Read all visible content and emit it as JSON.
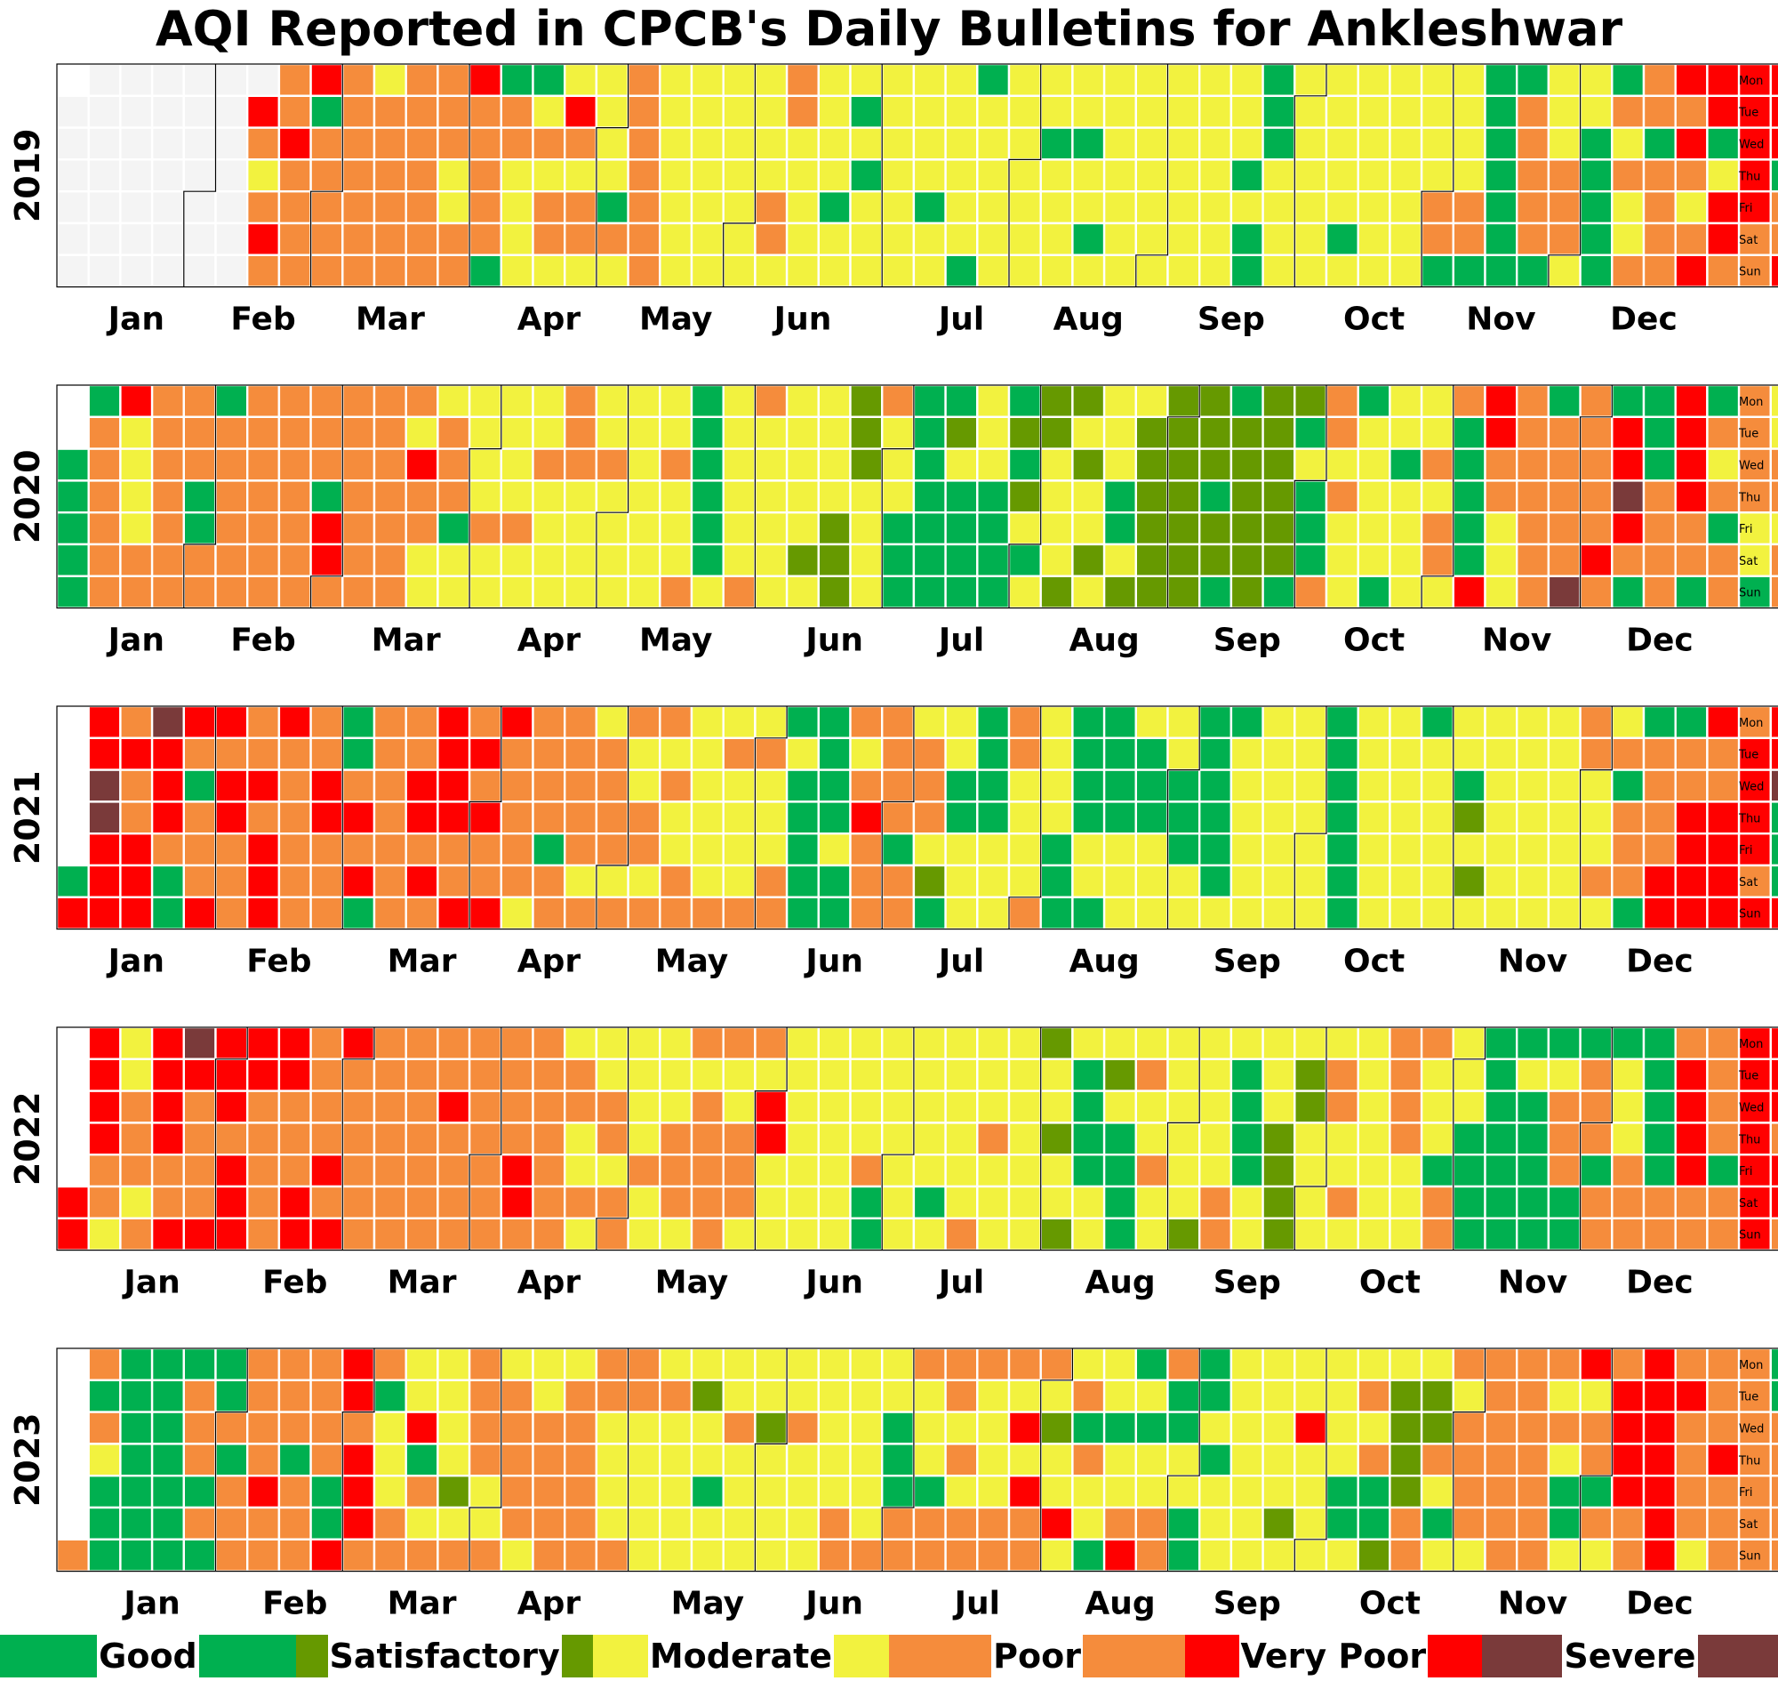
{
  "title": "AQI Reported in CPCB's Daily Bulletins for Ankleshwar",
  "colors": {
    "Good": "#00b050",
    "Satisfactory": "#669900",
    "Moderate": "#f2f23f",
    "Poor": "#f58c3c",
    "Very Poor": "#ff0000",
    "Severe": "#7a3a3a",
    "No data": "#f4f4f4"
  },
  "chart_data": {
    "type": "heatmap",
    "title": "AQI Reported in CPCB's Daily Bulletins for Ankleshwar",
    "legend_position": "bottom",
    "day_labels": [
      "Mon",
      "Tue",
      "Wed",
      "Thu",
      "Fri",
      "Sat",
      "Sun"
    ],
    "month_labels": [
      "Jan",
      "Feb",
      "Mar",
      "Apr",
      "May",
      "Jun",
      "Jul",
      "Aug",
      "Sep",
      "Oct",
      "Nov",
      "Dec"
    ],
    "categories": [
      "Good",
      "Satisfactory",
      "Moderate",
      "Poor",
      "Very Poor",
      "Severe"
    ],
    "code_legend": "Weekly columns from Monday to Sunday; one string per week, one character per day: G=Good, S=Satisfactory, M=Moderate, P=Poor, V=Very Poor, X=Severe, N=No data, space=not in year",
    "years": [
      {
        "year": "2019",
        "weeks": [
          " NNNNNN",
          "NNNNNNN",
          "NNNNNNN",
          "NNNNNNN",
          "NNNNNNN",
          "NNNNNNN",
          "NVPMPVP",
          "PPVPPPP",
          "VGPPPPP",
          "PPPPPPP",
          "MPPPPPP",
          "PPPPPPP",
          "PPPMMPP",
          "VPPPPPG",
          "GPPMMMM",
          "GMPMPPM",
          "MVPMPPM",
          "MMMMGPM",
          "PPPPPPP",
          "MMMMMMM",
          "MMMMMMM",
          "MMMMMMM",
          "MMMMPPM",
          "PPMMMMM",
          "MMMMGMM",
          "MGMGMMM",
          "MMMMMMM",
          "MMMMGMM",
          "MMMMMMG",
          "GMMMMMM",
          "MMMMMMM",
          "MMGMMMM",
          "MMGMMGM",
          "MMMMMMM",
          "MMMMMMM",
          "MMMMMMM",
          "MMMMMMM",
          "MMMGMGG",
          "GGGMMMM",
          "MMMMMMM",
          "MMMMMGM",
          "MMMMMMM",
          "MMMMMMM",
          "MMMMPPG",
          "MMMMPPG",
          "GGGGGGG",
          "GPPPPPG",
          "MMMPPPM",
          "MMGGGGG",
          "GPMPMMP",
          "PPGPPPP",
          "VPVPMPV",
          "VVGMVVP",
          "VVVVVPP",
          "VVVGPPV",
          "VGPVVGM",
          "MMPGGGV",
          "PVVMMMM",
          "PPMMMMM"
        ]
      },
      {
        "year": "2020",
        "weeks": [
          "  GGGGG",
          "GPPPPPP",
          "VMMMMPP",
          "PPPPPPP",
          "PPPGGPP",
          "GPPPPPP",
          "PPPPPPP",
          "PPPPPPP",
          "PPPGVVP",
          "PPPPPPP",
          "PPPPPPP",
          "PMVPPMM",
          "MPPPGMM",
          "MMMMPMM",
          "MMMMPMM",
          "MMPMMMM",
          "PPPMMMM",
          "MMPMMMM",
          "MMMMMMM",
          "MMPMMMP",
          "GGGGGGM",
          "MMMMMMP",
          "PMMMMMM",
          "MMMMMSM",
          "MMMMSSS",
          "SSSMMMM",
          "PMMMGGG",
          "GGGGGGG",
          "GSMGGGG",
          "MMMGGGG",
          "GSGSMGM",
          "SSMMMMS",
          "SMSMMSM",
          "MMMGGMS",
          "MSSSSSS",
          "SSSSSSS",
          "SSSGSSG",
          "GSSSSSS",
          "SSSSSSG",
          "SGMGGGP",
          "PPMPMMM",
          "GMMMMMG",
          "MMGMMMM",
          "MMPMPPM",
          "PGGGGGV",
          "VVPPMMM",
          "PPPPPPP",
          "GPPPPPX",
          "PPPPPVP",
          "GVVXVPG",
          "GGGPPPP",
          "VVVVPPG",
          "GPMPGPP",
          "PPPPMMG",
          "MMPPMPP",
          "GGMPPPM",
          "PPPPPPX",
          "VPPVVXX"
        ]
      },
      {
        "year": "2021",
        "weeks": [
          "     GV",
          "VVXXVVV",
          "PVPPVVV",
          "XVVVPGG",
          "VPGPPPV",
          "VPVVPPP",
          "PPVPVVV",
          "VPPPPPP",
          "PPVVPPP",
          "GGPVPVG",
          "PPPPPPP",
          "PPVVPVP",
          "VVVVPPV",
          "PVPVPPV",
          "VPPPPPM",
          "PPPPGPP",
          "PPPPPMP",
          "MPPPPMP",
          "PMMPPMP",
          "PMPMMPP",
          "MMMMMMP",
          "MPMMMMP",
          "MPMMMPP",
          "GMGGGGG",
          "GGGGMGG",
          "PMPVPPP",
          "PPPPGPP",
          "MPPPMSG",
          "MMGGMMM",
          "GGGGMMM",
          "PPMMMMP",
          "MMMMGGG",
          "GGGGMMG",
          "GGGGMMM",
          "MGGGMMM",
          "MMGGGMM",
          "GGGGGGM",
          "GMMMMMM",
          "MMMMMMM",
          "MMMMMMM",
          "GGGGGGG",
          "MMMMMMM",
          "MMMMMMM",
          "GMMMMMM",
          "MMGSMSM",
          "MMMMMMM",
          "MMMMMMM",
          "MMMMMMM",
          "PPMMMPM",
          "MPGPPPG",
          "GPPPPVV",
          "GPPVVVV",
          "VPPVVVV",
          "PVVVVPV",
          "VVXGGGV",
          "VVXXXVX",
          "VXXXPVP",
          "VVVGGGG",
          "VPPGGVX",
          "VVVPVVP",
          "VVVPVVP",
          "VVVPVPP",
          "VVVPX  ",
          "VGGP   "
        ]
      },
      {
        "year": "2022",
        "weeks": [
          "     VV",
          "VVVVPPM",
          "MMPPPMP",
          "VVVVPPV",
          "XVPPPPV",
          "VVVPVVV",
          "VVPPPPP",
          "VVPPPVV",
          "PPPPVPV",
          "VPPPPPP",
          "PPPPPPP",
          "PPPPPPP",
          "PPVPPPP",
          "PPPPPPP",
          "PPPPVVP",
          "PPPPPPP",
          "MPPMMPM",
          "MMPPMPP",
          "MMMMPMM",
          "MMMPPPM",
          "PMPPPPP",
          "PMMPPPM",
          "PMVVMMM",
          "MMMMMMM",
          "MMMMMMM",
          "MMMMPGG",
          "MMMMMMM",
          "MMMMMGM",
          "MMMMMMP",
          "MMMPMMM",
          "MMMMMMM",
          "SMMSMMS",
          "MGGGGMM",
          "MSMGGGG",
          "MPMMPMM",
          "MMMMMMS",
          "MMMMMPP",
          "MGGGGMM",
          "MMMSSSS",
          "MSSMMMM",
          "MPPMMPM",
          "MMMMMMM",
          "PPPPMMM",
          "PMMMGPP",
          "MMMGGGG",
          "GGGGGGG",
          "GMGGGGG",
          "GMPPPGG",
          "GPPPGPP",
          "GMMMPPP",
          "GGGGGPP",
          "PVVVVPP",
          "PPPPGPP",
          "VVVVVVV",
          "VVVPVVP",
          "VPPVVVP",
          "VXVVPVG",
          "VVVVVVP",
          "PVPPVPV",
          "GVVPPPP"
        ]
      },
      {
        "year": "2023",
        "weeks": [
          "      P",
          "PGPMGGG",
          "GGGGGGG",
          "GGGGGGG",
          "GPPPGPG",
          "GGPGPPP",
          "PPPPVPP",
          "PPPGPPP",
          "PPPPGGV",
          "VVPVVVP",
          "PGMMMPP",
          "MMVGPMP",
          "MMMMSMP",
          "PPPPMMP",
          "MPPPPPM",
          "MMPPPPP",
          "MPPPPPP",
          "PPMMMMP",
          "PPMMMMM",
          "MPMMMMM",
          "MSMMGMM",
          "MMPMMMM",
          "MMSMMMM",
          "MMPMMMM",
          "MMMMMPP",
          "MMMMMMP",
          "MMGGGPP",
          "PMMMGPP",
          "PPMPMPP",
          "PMMMMPP",
          "PMVMVPP",
          "PMSMMVM",
          "MPGPMMG",
          "MMGMMPV",
          "GMGMMPP",
          "PGGMMGG",
          "GGMGMMM",
          "MMMMMMM",
          "MMMMMSM",
          "MMVMMMM",
          "MMMMGGM",
          "MPMPGGS",
          "MSSSSPP",
          "MSSPMGM",
          "PMPPPPM",
          "PPPPPPP",
          "PPPPPPP",
          "PMPMGGM",
          "VMPPGPM",
          "PVVVVPP",
          "VVVVVVV",
          "PVPPPPM",
          "PPPVPPP",
          "PPPPPPP",
          "GGPPPPP",
          "PPPPMPP",
          "PPPPPPP",
          "PPMMPVP",
          "VMMVVPV"
        ]
      }
    ]
  }
}
